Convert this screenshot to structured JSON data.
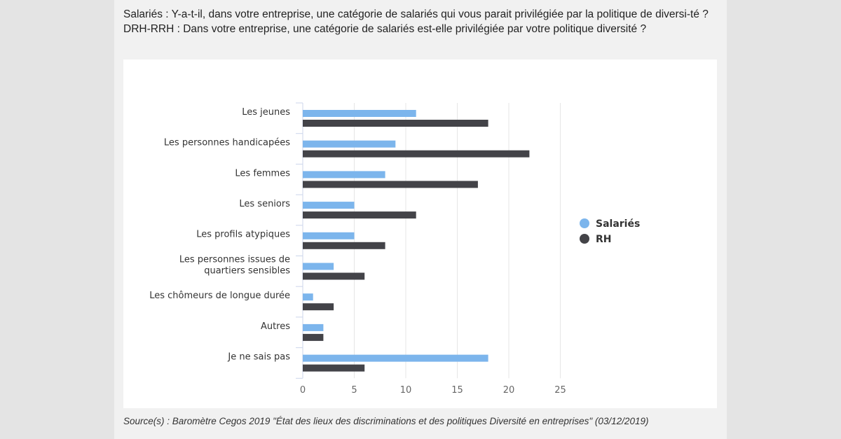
{
  "header": {
    "question_salaries": "Salariés : Y-a-t-il, dans votre entreprise, une catégorie de salariés qui vous parait privilégiée par la politique de diversi-té ?",
    "question_drh": "DRH-RRH : Dans votre entreprise, une catégorie de salariés est-elle privilégiée par votre politique diversité ?"
  },
  "source": "Source(s) : Baromètre Cegos 2019 \"État des lieux des discriminations et des politiques Diversité en entreprises\" (03/12/2019)",
  "chart_data": {
    "type": "bar",
    "orientation": "horizontal",
    "categories": [
      "Les jeunes",
      "Les personnes handicapées",
      "Les femmes",
      "Les seniors",
      "Les profils atypiques",
      "Les personnes issues de quartiers sensibles",
      "Les chômeurs de longue durée",
      "Autres",
      "Je ne sais pas"
    ],
    "series": [
      {
        "name": "Salariés",
        "color": "#7cb5ec",
        "values": [
          11,
          9,
          8,
          5,
          5,
          3,
          1,
          2,
          18
        ]
      },
      {
        "name": "RH",
        "color": "#434348",
        "values": [
          18,
          22,
          17,
          11,
          8,
          6,
          3,
          2,
          6
        ]
      }
    ],
    "xlim": [
      0,
      25
    ],
    "xticks": [
      0,
      5,
      10,
      15,
      20,
      25
    ],
    "grid": true,
    "legend": "right"
  }
}
